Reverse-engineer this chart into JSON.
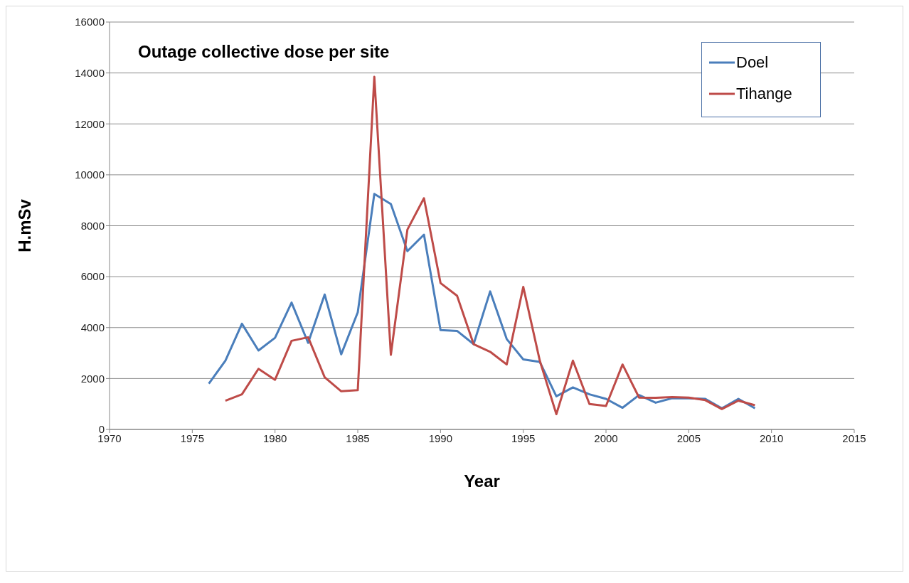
{
  "chart_data": {
    "type": "line",
    "title": "Outage collective dose per site",
    "xlabel": "Year",
    "ylabel": "H.mSv",
    "xlim": [
      1970,
      2015
    ],
    "xticks": [
      1970,
      1975,
      1980,
      1985,
      1990,
      1995,
      2000,
      2005,
      2010,
      2015
    ],
    "ylim": [
      0,
      16000
    ],
    "yticks": [
      0,
      2000,
      4000,
      6000,
      8000,
      10000,
      12000,
      14000,
      16000
    ],
    "grid": "y",
    "legend": "top right",
    "marker": "none",
    "line_style": "solid",
    "series": [
      {
        "name": "Doel",
        "color": "#4a7ebb",
        "x": [
          1976,
          1977,
          1978,
          1979,
          1980,
          1981,
          1982,
          1983,
          1984,
          1985,
          1986,
          1987,
          1988,
          1989,
          1990,
          1991,
          1992,
          1993,
          1994,
          1995,
          1996,
          1997,
          1998,
          1999,
          2000,
          2001,
          2002,
          2003,
          2004,
          2005,
          2006,
          2007,
          2008,
          2009
        ],
        "values": [
          1800,
          2700,
          4150,
          3100,
          3600,
          4980,
          3400,
          5300,
          2950,
          4600,
          9250,
          8850,
          7000,
          7650,
          3900,
          3870,
          3350,
          5420,
          3550,
          2750,
          2650,
          1300,
          1650,
          1380,
          1200,
          850,
          1350,
          1050,
          1230,
          1220,
          1200,
          830,
          1200,
          830
        ]
      },
      {
        "name": "Tihange",
        "color": "#be4b48",
        "x": [
          1977,
          1978,
          1979,
          1980,
          1981,
          1982,
          1983,
          1984,
          1985,
          1986,
          1987,
          1988,
          1989,
          1990,
          1991,
          1992,
          1993,
          1994,
          1995,
          1996,
          1997,
          1998,
          1999,
          2000,
          2001,
          2002,
          2003,
          2004,
          2005,
          2006,
          2007,
          2008,
          2009
        ],
        "values": [
          1130,
          1380,
          2380,
          1950,
          3480,
          3620,
          2050,
          1500,
          1540,
          13850,
          2930,
          7850,
          9080,
          5750,
          5250,
          3350,
          3050,
          2550,
          5600,
          2700,
          600,
          2700,
          1000,
          920,
          2550,
          1250,
          1240,
          1270,
          1250,
          1150,
          800,
          1130,
          950
        ]
      }
    ]
  }
}
